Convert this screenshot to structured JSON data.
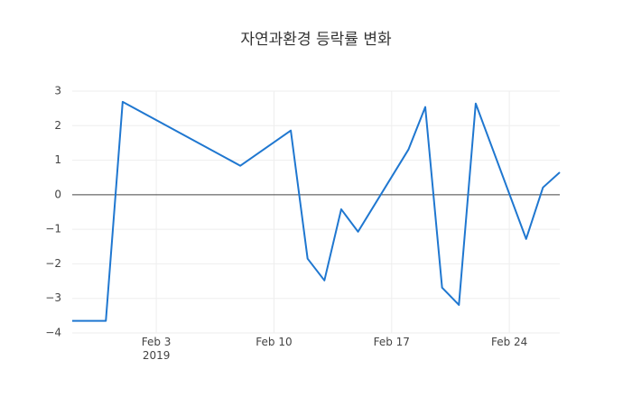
{
  "chart_data": {
    "type": "line",
    "title": "자연과환경 등락률 변화",
    "x": [
      "2019-01-29",
      "2019-01-31",
      "2019-02-01",
      "2019-02-08",
      "2019-02-11",
      "2019-02-12",
      "2019-02-13",
      "2019-02-14",
      "2019-02-15",
      "2019-02-18",
      "2019-02-19",
      "2019-02-20",
      "2019-02-21",
      "2019-02-22",
      "2019-02-25",
      "2019-02-26",
      "2019-02-27"
    ],
    "series": [
      {
        "color": "#1f77d0",
        "values": [
          -3.65,
          -3.65,
          2.69,
          0.84,
          1.86,
          -1.85,
          -2.48,
          -0.42,
          -1.07,
          1.31,
          2.54,
          -2.69,
          -3.19,
          2.64,
          -1.28,
          0.21,
          0.65
        ]
      }
    ],
    "xlim": [
      "2019-01-29",
      "2019-02-27"
    ],
    "xticks": [
      {
        "value": "2019-02-03",
        "label": "Feb 3\n2019"
      },
      {
        "value": "2019-02-10",
        "label": "Feb 10"
      },
      {
        "value": "2019-02-17",
        "label": "Feb 17"
      },
      {
        "value": "2019-02-24",
        "label": "Feb 24"
      }
    ],
    "ylim": [
      -4,
      3
    ],
    "yticks": [
      {
        "value": -4,
        "label": "−4"
      },
      {
        "value": -3,
        "label": "−3"
      },
      {
        "value": -2,
        "label": "−2"
      },
      {
        "value": -1,
        "label": "−1"
      },
      0,
      1,
      2,
      3
    ],
    "grid": true,
    "zeroline": true
  }
}
